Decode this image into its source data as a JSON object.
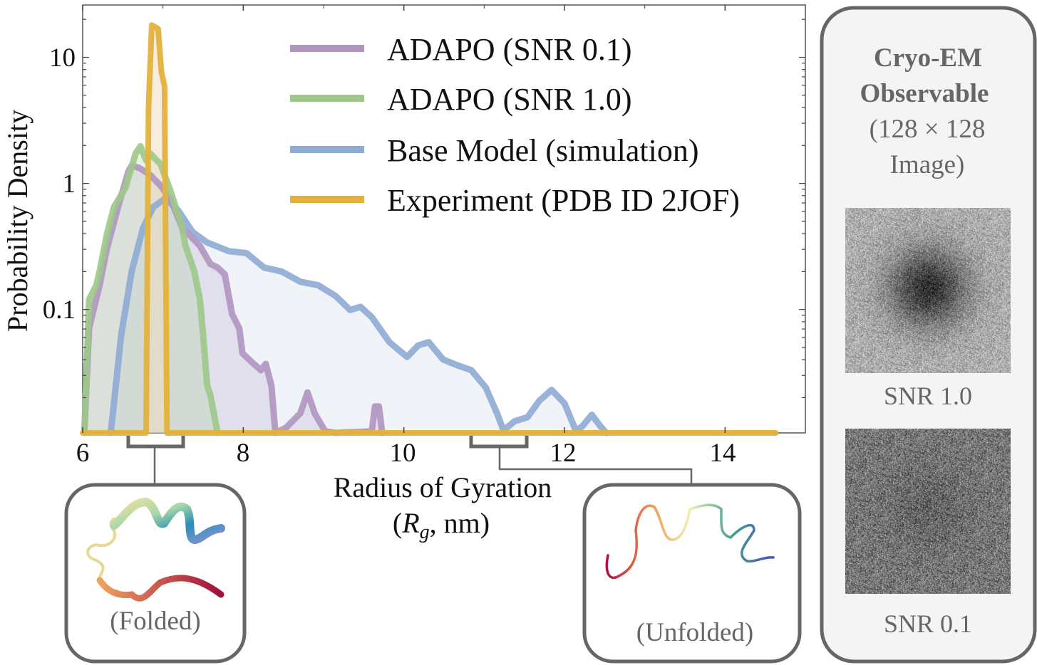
{
  "chart_data": {
    "type": "line",
    "xlabel": "Radius of Gyration",
    "xlabel_units": "(R_g, nm)",
    "ylabel": "Probability Density",
    "xlim": [
      6,
      15
    ],
    "ylim": [
      0.0105,
      26
    ],
    "yscale": "log",
    "x_ticks": [
      "6",
      "8",
      "10",
      "12",
      "14"
    ],
    "x_tick_values": [
      6,
      8,
      10,
      12,
      14
    ],
    "y_ticks": [
      "10",
      "1",
      "0.1"
    ],
    "y_tick_values": [
      10,
      1,
      0.1
    ],
    "grid": false,
    "legend_position": "top-right",
    "series": [
      {
        "name": "ADAPO (SNR 0.1)",
        "color": "#b095c0",
        "fill": "rgba(176,149,192,0.22)",
        "x": [
          6.02,
          6.08,
          6.21,
          6.3,
          6.44,
          6.57,
          6.61,
          6.7,
          6.84,
          6.97,
          7.1,
          7.24,
          7.33,
          7.46,
          7.59,
          7.68,
          7.77,
          7.86,
          7.95,
          7.99,
          8.13,
          8.22,
          8.28,
          8.35,
          8.4,
          8.53,
          8.71,
          8.8,
          8.89,
          9.02,
          9.15,
          9.6,
          9.64,
          9.69,
          9.73
        ],
        "y": [
          0.0105,
          0.071,
          0.156,
          0.3,
          0.65,
          1.25,
          1.38,
          1.33,
          1.17,
          0.96,
          0.74,
          0.44,
          0.39,
          0.32,
          0.23,
          0.215,
          0.19,
          0.092,
          0.071,
          0.045,
          0.037,
          0.033,
          0.037,
          0.025,
          0.0105,
          0.0115,
          0.015,
          0.022,
          0.015,
          0.0108,
          0.0105,
          0.0108,
          0.017,
          0.017,
          0.0105
        ]
      },
      {
        "name": "ADAPO (SNR 1.0)",
        "color": "#9dc88a",
        "fill": "rgba(157,200,138,0.22)",
        "x": [
          6.02,
          6.08,
          6.17,
          6.21,
          6.3,
          6.39,
          6.53,
          6.66,
          6.72,
          6.79,
          6.84,
          6.97,
          7.1,
          7.24,
          7.28,
          7.33,
          7.39,
          7.46,
          7.5,
          7.55,
          7.59,
          7.68
        ],
        "y": [
          0.0105,
          0.12,
          0.156,
          0.2,
          0.39,
          0.65,
          0.91,
          1.73,
          1.97,
          1.52,
          1.73,
          1.42,
          0.85,
          0.44,
          0.32,
          0.26,
          0.2,
          0.12,
          0.063,
          0.025,
          0.021,
          0.0105
        ]
      },
      {
        "name": "Base Model (simulation)",
        "color": "#8eabd4",
        "fill": "rgba(142,171,212,0.13)",
        "x": [
          6.35,
          6.48,
          6.61,
          6.75,
          6.88,
          7.03,
          7.19,
          7.37,
          7.55,
          7.82,
          8.04,
          8.26,
          8.48,
          8.71,
          8.93,
          9.15,
          9.33,
          9.46,
          9.6,
          9.82,
          10.04,
          10.18,
          10.31,
          10.49,
          10.67,
          10.84,
          11.02,
          11.16,
          11.24,
          11.38,
          11.54,
          11.69,
          11.84,
          12.0,
          12.14,
          12.22,
          12.34,
          12.45,
          12.52
        ],
        "y": [
          0.0105,
          0.063,
          0.2,
          0.44,
          0.65,
          0.76,
          0.61,
          0.41,
          0.34,
          0.29,
          0.28,
          0.215,
          0.2,
          0.166,
          0.156,
          0.128,
          0.099,
          0.105,
          0.087,
          0.055,
          0.042,
          0.052,
          0.055,
          0.04,
          0.036,
          0.033,
          0.024,
          0.015,
          0.011,
          0.013,
          0.014,
          0.019,
          0.023,
          0.018,
          0.011,
          0.0118,
          0.0146,
          0.0118,
          0.0105
        ]
      },
      {
        "name": "Experiment (PDB ID 2JOF)",
        "color": "#e3b23c",
        "fill": "rgba(240,220,190,0.5)",
        "x": [
          6.0,
          6.79,
          6.82,
          6.86,
          6.91,
          6.94,
          6.98,
          7.02,
          7.05,
          14.63
        ],
        "y": [
          0.0105,
          0.0105,
          4.0,
          18,
          17.3,
          16.8,
          7.7,
          5.9,
          0.0105,
          0.0105
        ]
      }
    ]
  },
  "annotations": {
    "folded_label": "(Folded)",
    "unfolded_label": "(Unfolded)"
  },
  "side_panel": {
    "title_line1": "Cryo-EM",
    "title_line2": "Observable",
    "subtitle_line1": "(128 × 128",
    "subtitle_line2": "Image)",
    "image_labels": [
      "SNR 1.0",
      "SNR 0.1"
    ]
  }
}
